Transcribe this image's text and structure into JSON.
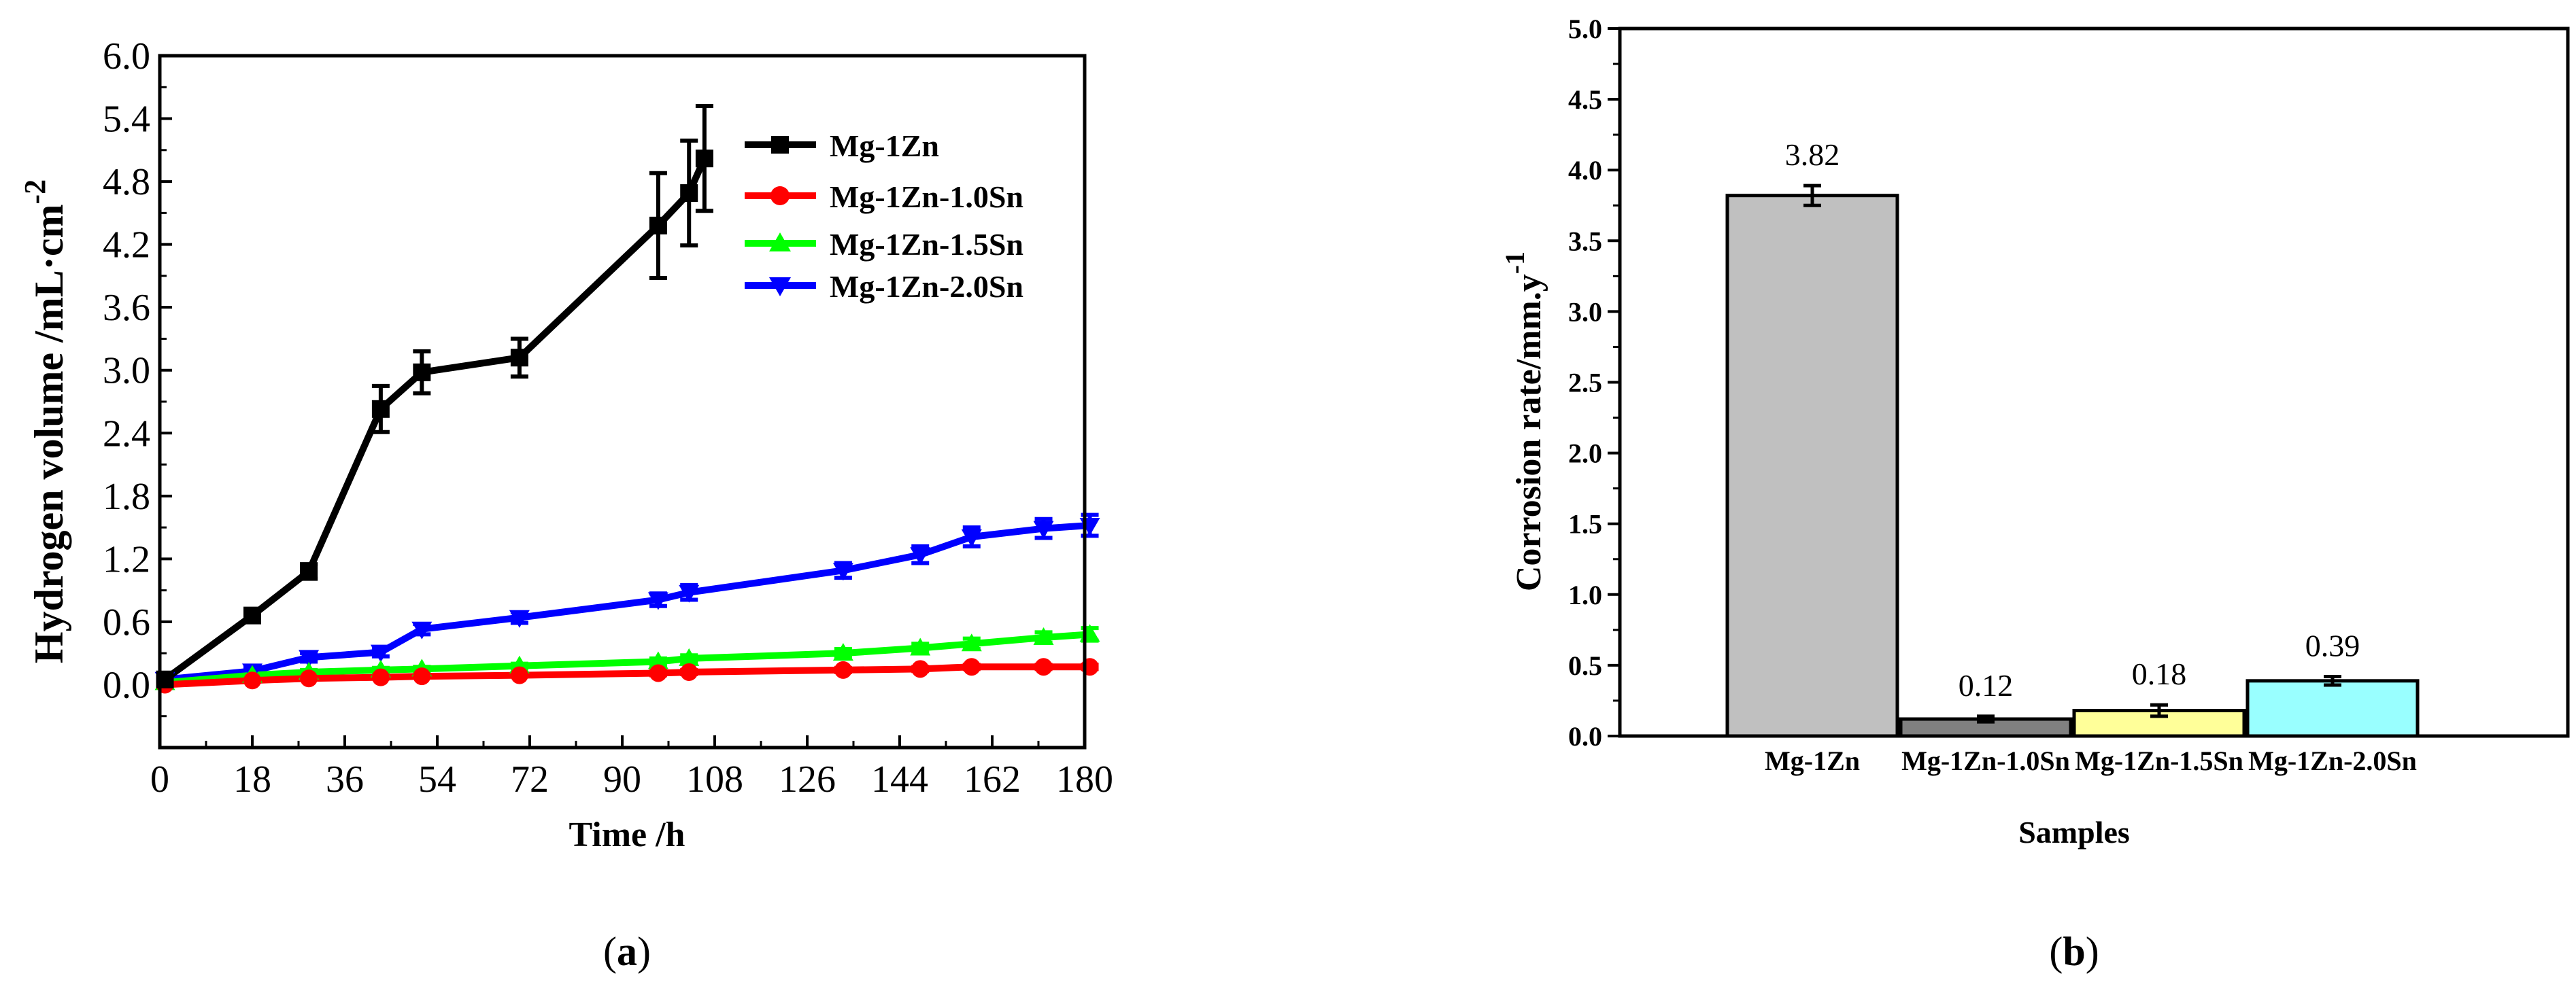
{
  "chart_data": [
    {
      "type": "line",
      "panel_label": "(a)",
      "panel_letter": "a",
      "xlabel": "Time /h",
      "ylabel": "Hydrogen  volume /mL·cm",
      "ylabel_superscript": "-2",
      "xlim": [
        0,
        180
      ],
      "ylim": [
        -0.6,
        6.0
      ],
      "xticks": [
        0,
        18,
        36,
        54,
        72,
        90,
        108,
        126,
        144,
        162,
        180
      ],
      "yticks": [
        0.0,
        0.6,
        1.2,
        1.8,
        2.4,
        3.0,
        3.6,
        4.2,
        4.8,
        5.4,
        6.0
      ],
      "xtick_labels": [
        "0",
        "18",
        "36",
        "54",
        "72",
        "90",
        "108",
        "126",
        "144",
        "162",
        "180"
      ],
      "ytick_labels": [
        "0.0",
        "0.6",
        "1.2",
        "1.8",
        "2.4",
        "3.0",
        "3.6",
        "4.2",
        "4.8",
        "5.4",
        "6.0"
      ],
      "legend_position": "top-right",
      "series": [
        {
          "name": "Mg-1Zn",
          "color": "#000000",
          "marker": "square",
          "x": [
            1,
            18,
            29,
            43,
            51,
            70,
            97,
            103,
            106
          ],
          "y": [
            0.05,
            0.66,
            1.08,
            2.63,
            2.98,
            3.12,
            4.38,
            4.69,
            5.02
          ],
          "err": [
            0.02,
            0.06,
            0.07,
            0.22,
            0.2,
            0.18,
            0.5,
            0.5,
            0.5
          ]
        },
        {
          "name": "Mg-1Zn-1.0Sn",
          "color": "#ff0000",
          "marker": "circle",
          "x": [
            1,
            18,
            29,
            43,
            51,
            70,
            97,
            103,
            133,
            148,
            158,
            172,
            181
          ],
          "y": [
            0.0,
            0.04,
            0.06,
            0.07,
            0.08,
            0.09,
            0.11,
            0.12,
            0.14,
            0.15,
            0.17,
            0.17,
            0.17
          ],
          "err": [
            0.01,
            0.01,
            0.01,
            0.01,
            0.01,
            0.01,
            0.02,
            0.02,
            0.02,
            0.02,
            0.02,
            0.02,
            0.02
          ]
        },
        {
          "name": "Mg-1Zn-1.5Sn",
          "color": "#00ff00",
          "marker": "triangle-up",
          "x": [
            1,
            18,
            29,
            43,
            51,
            70,
            97,
            103,
            133,
            148,
            158,
            172,
            181
          ],
          "y": [
            0.02,
            0.09,
            0.12,
            0.14,
            0.15,
            0.18,
            0.22,
            0.25,
            0.3,
            0.35,
            0.39,
            0.45,
            0.48
          ],
          "err": [
            0.02,
            0.02,
            0.02,
            0.02,
            0.02,
            0.02,
            0.03,
            0.03,
            0.04,
            0.04,
            0.05,
            0.05,
            0.06
          ]
        },
        {
          "name": "Mg-1Zn-2.0Sn",
          "color": "#0000ff",
          "marker": "triangle-down",
          "x": [
            1,
            18,
            29,
            43,
            51,
            70,
            97,
            103,
            133,
            148,
            158,
            172,
            181
          ],
          "y": [
            0.05,
            0.13,
            0.26,
            0.31,
            0.53,
            0.64,
            0.81,
            0.88,
            1.09,
            1.24,
            1.41,
            1.49,
            1.52
          ],
          "err": [
            0.03,
            0.04,
            0.04,
            0.04,
            0.05,
            0.05,
            0.06,
            0.07,
            0.07,
            0.08,
            0.09,
            0.09,
            0.1
          ]
        }
      ]
    },
    {
      "type": "bar",
      "panel_label": "(b)",
      "panel_letter": "b",
      "xlabel": "Samples",
      "ylabel": "Corrosion rate/mm.y",
      "ylabel_superscript": "-1",
      "ylim": [
        0.0,
        5.0
      ],
      "yticks": [
        0.0,
        0.5,
        1.0,
        1.5,
        2.0,
        2.5,
        3.0,
        3.5,
        4.0,
        4.5,
        5.0
      ],
      "ytick_labels": [
        "0.0",
        "0.5",
        "1.0",
        "1.5",
        "2.0",
        "2.5",
        "3.0",
        "3.5",
        "4.0",
        "4.5",
        "5.0"
      ],
      "categories": [
        "Mg-1Zn",
        "Mg-1Zn-1.0Sn",
        "Mg-1Zn-1.5Sn",
        "Mg-1Zn-2.0Sn"
      ],
      "values": [
        3.82,
        0.12,
        0.18,
        0.39
      ],
      "value_labels": [
        "3.82",
        "0.12",
        "0.18",
        "0.39"
      ],
      "errors": [
        0.07,
        0.02,
        0.04,
        0.03
      ],
      "colors": [
        "#c0c0c0",
        "#808080",
        "#ffff99",
        "#99ffff"
      ]
    }
  ]
}
